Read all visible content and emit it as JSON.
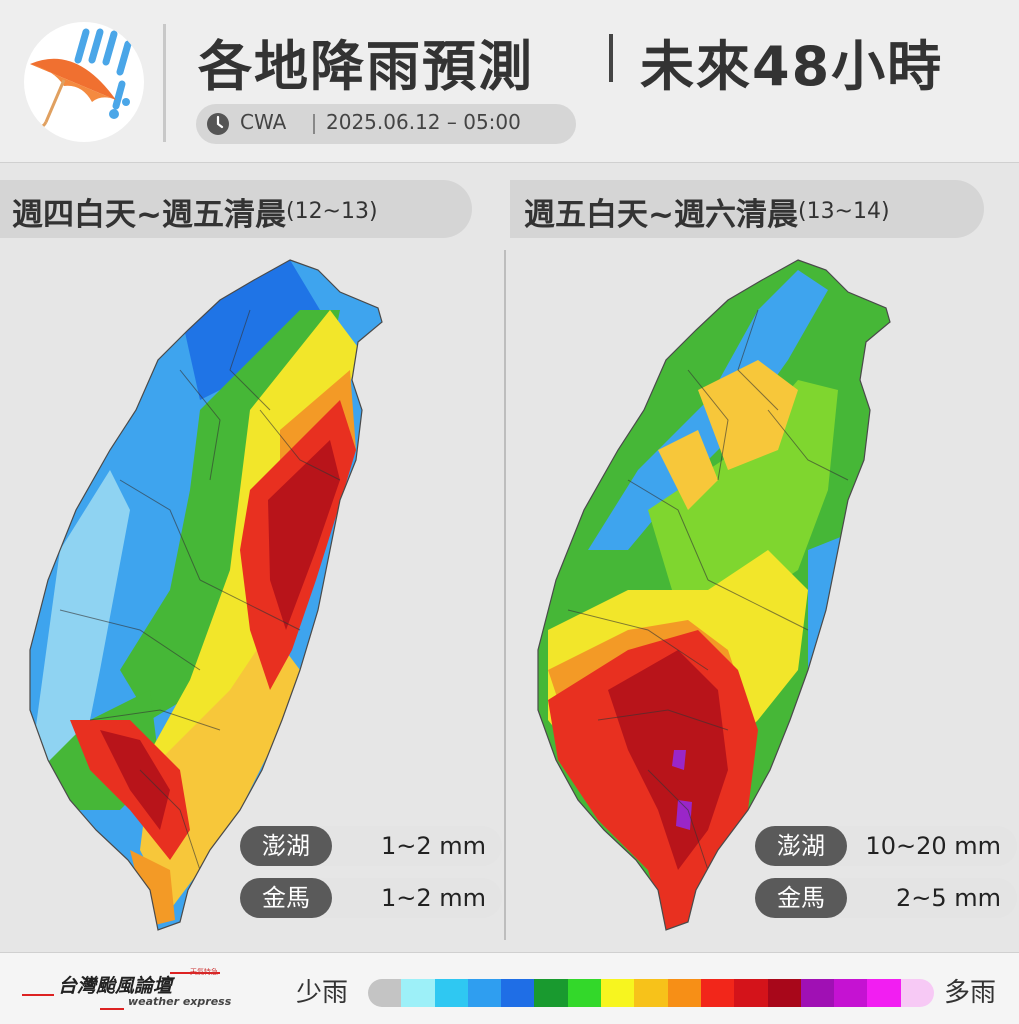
{
  "header": {
    "title": "各地降雨預測",
    "subtitle": "未來48小時",
    "source": "CWA",
    "issue_time": "2025.06.12 – 05:00",
    "icon": "umbrella-rain-icon"
  },
  "panels": [
    {
      "label": "週四白天~週五清晨",
      "dates": "(12~13)",
      "rain_level": "left",
      "islands": [
        {
          "name": "澎湖",
          "value": "1~2 mm"
        },
        {
          "name": "金馬",
          "value": "1~2 mm"
        }
      ]
    },
    {
      "label": "週五白天~週六清晨",
      "dates": "(13~14)",
      "rain_level": "right",
      "islands": [
        {
          "name": "澎湖",
          "value": "10~20 mm"
        },
        {
          "name": "金馬",
          "value": "2~5 mm"
        }
      ]
    }
  ],
  "footer": {
    "brand_name": "台灣颱風論壇",
    "brand_sub": "weather express",
    "brand_tag": "天氣特急",
    "legend_low": "少雨",
    "legend_high": "多雨",
    "legend_colors": [
      "#c4c4c4",
      "#9df0f8",
      "#2fc8f2",
      "#2f9ef0",
      "#1f6ee6",
      "#199a2f",
      "#33d82a",
      "#f7f51f",
      "#f7c21a",
      "#f78f16",
      "#f2261a",
      "#d4131a",
      "#a8071a",
      "#a010b4",
      "#c512d2",
      "#f21ef2",
      "#f7c9f5"
    ],
    "rain_palette": {
      "blue_light": "#8fd3f2",
      "blue_mid": "#3ea4ee",
      "blue_dark": "#1f74e6",
      "green": "#46b737",
      "green_dark": "#218c2c",
      "lime": "#7fd62f",
      "yellow": "#f2e62a",
      "orange_light": "#f7c73a",
      "orange": "#f39a26",
      "red": "#e83020",
      "red_dark": "#b8141a",
      "purple": "#9a26c8",
      "boundary": "#333333"
    }
  }
}
